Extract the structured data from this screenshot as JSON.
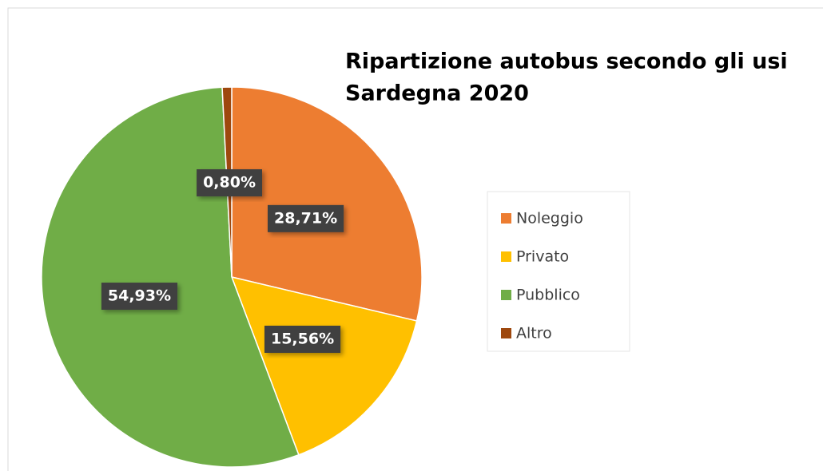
{
  "chart_data": {
    "type": "pie",
    "title": "Ripartizione autobus secondo gli usi",
    "subtitle": "Sardegna 2020",
    "categories": [
      "Noleggio",
      "Privato",
      "Pubblico",
      "Altro"
    ],
    "values": [
      28.71,
      15.56,
      54.93,
      0.8
    ],
    "value_labels": [
      "28,71%",
      "15,56%",
      "54,93%",
      "0,80%"
    ],
    "colors": [
      "#ed7d31",
      "#ffc000",
      "#70ad47",
      "#9e480e"
    ],
    "legend": "right"
  }
}
